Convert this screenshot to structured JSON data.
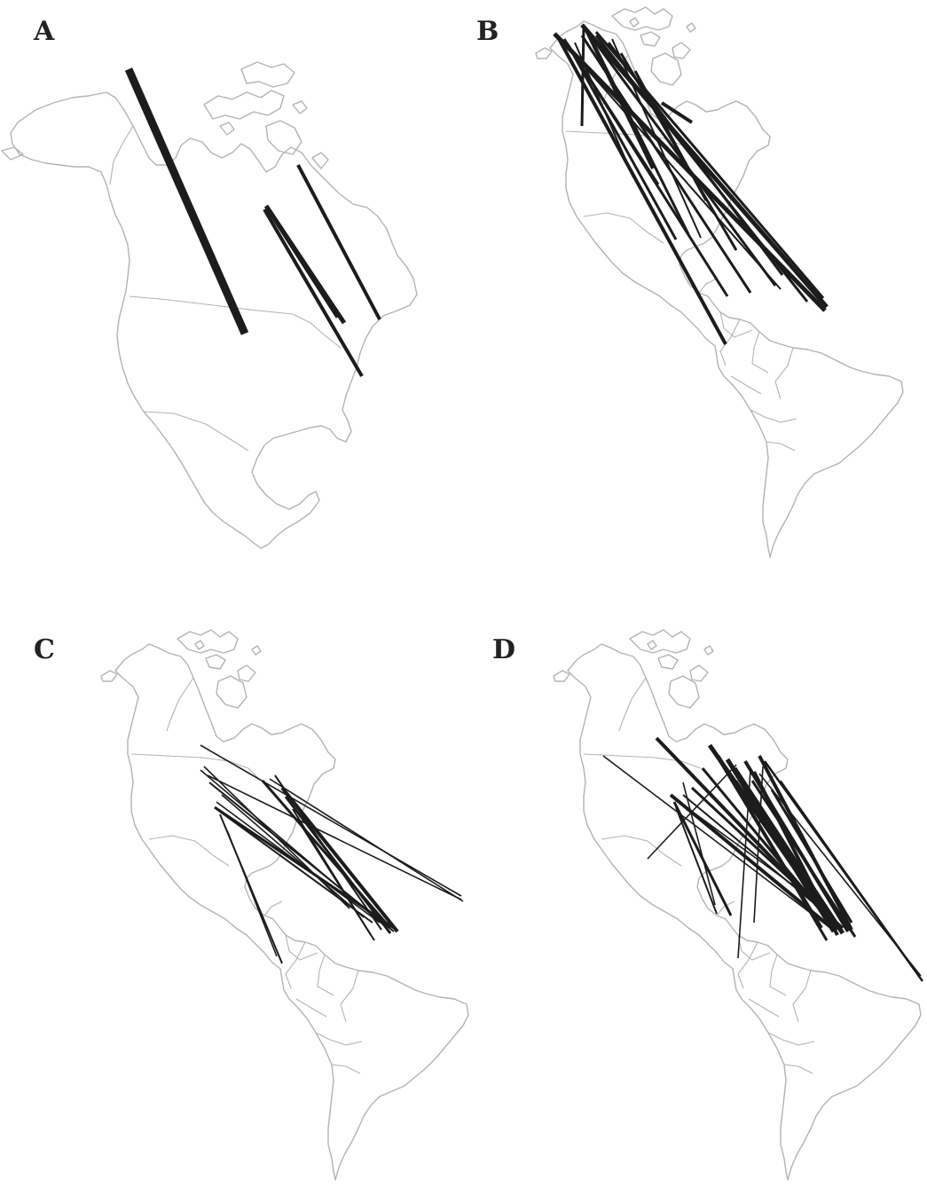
{
  "figure": {
    "panels": [
      {
        "id": "A",
        "label": "A"
      },
      {
        "id": "B",
        "label": "B"
      },
      {
        "id": "C",
        "label": "C"
      },
      {
        "id": "D",
        "label": "D"
      }
    ],
    "colors": {
      "coastline": "#b3b3b3",
      "route": "#1c1c1c",
      "label": "#222222",
      "background": "#ffffff"
    }
  }
}
